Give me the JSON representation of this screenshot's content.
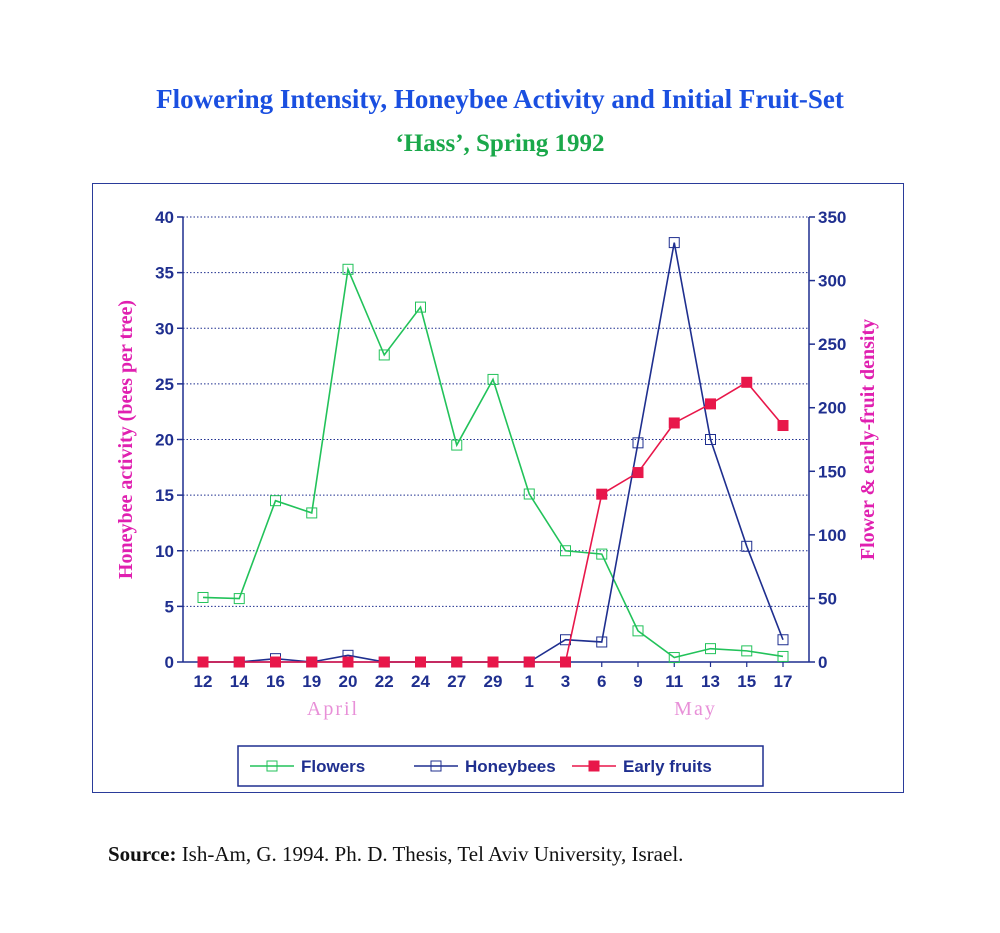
{
  "title": "Flowering Intensity, Honeybee Activity and Initial Fruit-Set",
  "subtitle": "‘Hass’, Spring 1992",
  "source": {
    "label": "Source:",
    "text": "Ish-Am,  G. 1994. Ph. D. Thesis, Tel Aviv University, Israel."
  },
  "colors": {
    "flowers": "#22c25a",
    "honeybees": "#1f2f8f",
    "early_fruits": "#e8174a",
    "axis": "#1f2f8f",
    "axis_title": "#e020b0",
    "month_label": "#e890d8"
  },
  "chart_data": {
    "type": "line",
    "categories": [
      "12",
      "14",
      "16",
      "19",
      "20",
      "22",
      "24",
      "27",
      "29",
      "1",
      "3",
      "6",
      "9",
      "11",
      "13",
      "15",
      "17"
    ],
    "month_labels": [
      {
        "text": "April",
        "at_category": "20"
      },
      {
        "text": "May",
        "at_category": "13"
      }
    ],
    "ylabel_left": "Honeybee activity (bees per tree)",
    "ylabel_right": "Flower & early-fruit density",
    "ylim_left": [
      0,
      40
    ],
    "yticks_left": [
      0,
      5,
      10,
      15,
      20,
      25,
      30,
      35,
      40
    ],
    "ylim_right": [
      0,
      350
    ],
    "yticks_right": [
      0,
      50,
      100,
      150,
      200,
      250,
      300,
      350
    ],
    "grid": true,
    "legend_position": "bottom",
    "series": [
      {
        "name": "Flowers",
        "axis": "left",
        "marker": "open-square",
        "values": [
          5.8,
          5.7,
          14.5,
          13.4,
          35.3,
          27.6,
          31.9,
          19.5,
          25.4,
          15.1,
          10.0,
          9.7,
          2.8,
          0.4,
          1.2,
          1.0,
          0.5
        ]
      },
      {
        "name": "Honeybees",
        "axis": "left",
        "marker": "open-square",
        "values": [
          0,
          0,
          0.3,
          0,
          0.6,
          0,
          0,
          0,
          0,
          0,
          2.0,
          1.8,
          19.7,
          37.7,
          20.0,
          10.4,
          2.0
        ]
      },
      {
        "name": "Early fruits",
        "axis": "right",
        "marker": "filled-square",
        "values": [
          0,
          0,
          0,
          0,
          0,
          0,
          0,
          0,
          0,
          0,
          0,
          132,
          149,
          188,
          203,
          220,
          186
        ]
      }
    ]
  }
}
